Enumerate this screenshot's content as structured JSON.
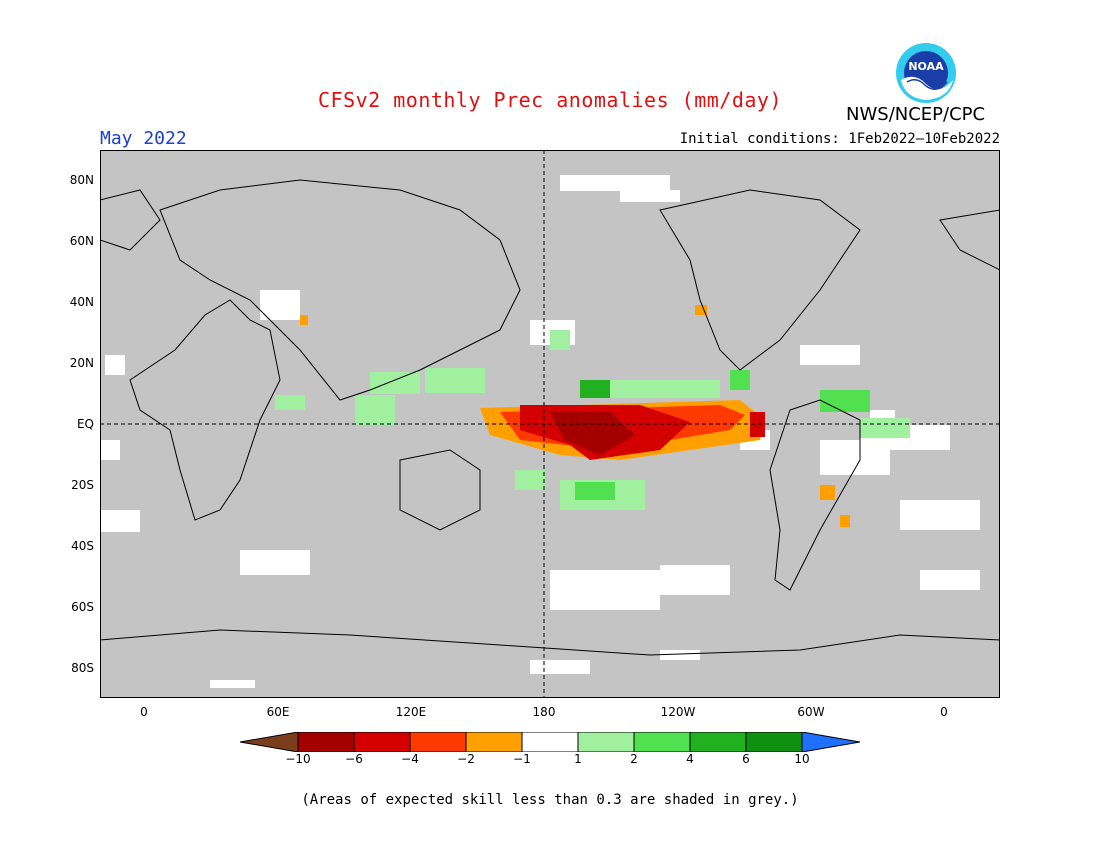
{
  "title": "CFSv2 monthly Prec anomalies (mm/day)",
  "organization": "NWS/NCEP/CPC",
  "logo_text": "NOAA",
  "month_label": "May 2022",
  "initial_conditions": "Initial conditions: 1Feb2022–10Feb2022",
  "lat_labels": [
    "80N",
    "60N",
    "40N",
    "20N",
    "EQ",
    "20S",
    "40S",
    "60S",
    "80S"
  ],
  "lon_labels": [
    "0",
    "60E",
    "120E",
    "180",
    "120W",
    "60W",
    "0"
  ],
  "colorbar": {
    "labels": [
      "−10",
      "−6",
      "−4",
      "−2",
      "−1",
      "1",
      "2",
      "4",
      "6",
      "10"
    ],
    "colors": [
      "#7a3f1a",
      "#a50000",
      "#d40000",
      "#ff3a00",
      "#ffa000",
      "#ffffff",
      "#a0f0a0",
      "#50e050",
      "#20b020",
      "#109010",
      "#2070ff"
    ]
  },
  "colors": {
    "skill_grey": "#c4c4c4",
    "title_red": "#e01010",
    "month_blue": "#1a3ed8"
  },
  "footnote": "(Areas of expected skill less than 0.3 are shaded in grey.)"
}
